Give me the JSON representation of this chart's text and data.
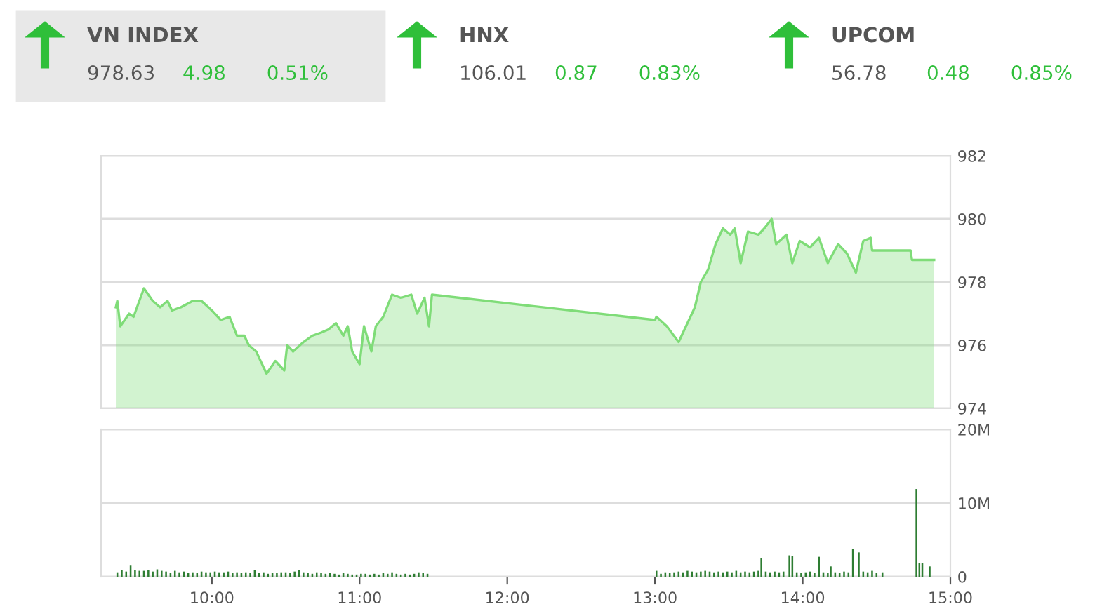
{
  "chart_data": [
    {
      "type": "other",
      "annotations": [
        "VN INDEX",
        "978.63",
        "4.98",
        "0.51%",
        "HNX",
        "106.01",
        "0.87",
        "0.83%",
        "UPCOM",
        "56.78",
        "0.48",
        "0.85%"
      ]
    },
    {
      "type": "area",
      "tick_labels": "y",
      "grid": "y",
      "xlim": [
        9.25,
        15
      ],
      "ylim": [
        974,
        982
      ],
      "yticks": [
        974,
        976,
        978,
        980,
        982
      ],
      "series": [
        {
          "color": "#7fdc78",
          "x": [
            9.35,
            9.36,
            9.38,
            9.44,
            9.47,
            9.54,
            9.6,
            9.65,
            9.7,
            9.73,
            9.79,
            9.87,
            9.93,
            10.0,
            10.06,
            10.12,
            10.17,
            10.22,
            10.25,
            10.3,
            10.37,
            10.43,
            10.49,
            10.51,
            10.55,
            10.62,
            10.68,
            10.74,
            10.79,
            10.84,
            10.89,
            10.92,
            10.95,
            11.0,
            11.03,
            11.08,
            11.11,
            11.16,
            11.22,
            11.28,
            11.35,
            11.39,
            11.44,
            11.47,
            11.49,
            13.0,
            13.01,
            13.08,
            13.16,
            13.22,
            13.27,
            13.31,
            13.36,
            13.41,
            13.46,
            13.51,
            13.54,
            13.58,
            13.63,
            13.7,
            13.74,
            13.79,
            13.82,
            13.89,
            13.93,
            13.98,
            14.05,
            14.11,
            14.17,
            14.24,
            14.3,
            14.36,
            14.41,
            14.46,
            14.47,
            14.73,
            14.74,
            14.89
          ],
          "values": [
            977.2,
            977.4,
            976.6,
            977.0,
            976.9,
            977.8,
            977.4,
            977.2,
            977.4,
            977.1,
            977.2,
            977.4,
            977.4,
            977.1,
            976.8,
            976.9,
            976.3,
            976.3,
            976.0,
            975.8,
            975.1,
            975.5,
            975.2,
            976.0,
            975.8,
            976.1,
            976.3,
            976.4,
            976.5,
            976.7,
            976.3,
            976.6,
            975.8,
            975.4,
            976.6,
            975.8,
            976.6,
            976.9,
            977.6,
            977.5,
            977.6,
            977.0,
            977.5,
            976.6,
            977.6,
            976.8,
            976.9,
            976.6,
            976.1,
            976.7,
            977.2,
            978.0,
            978.4,
            979.2,
            979.7,
            979.5,
            979.7,
            978.6,
            979.6,
            979.5,
            979.7,
            980.0,
            979.2,
            979.5,
            978.6,
            979.3,
            979.1,
            979.4,
            978.6,
            979.2,
            978.9,
            978.3,
            979.3,
            979.4,
            979.0,
            979.0,
            978.7,
            978.7
          ]
        }
      ]
    },
    {
      "type": "bar",
      "grid": "y",
      "xlim": [
        9.25,
        15
      ],
      "ylim": [
        0,
        20
      ],
      "yticks": [
        {
          "value": 0,
          "label": "0"
        },
        {
          "value": 10,
          "label": "10M"
        },
        {
          "value": 20,
          "label": "20M"
        }
      ],
      "xticks": [
        {
          "value": 10,
          "label": "10:00"
        },
        {
          "value": 11,
          "label": "11:00"
        },
        {
          "value": 12,
          "label": "12:00"
        },
        {
          "value": 13,
          "label": "13:00"
        },
        {
          "value": 14,
          "label": "14:00"
        },
        {
          "value": 15,
          "label": "15:00"
        }
      ],
      "series": [
        {
          "color": "#2e7d32",
          "x": [
            9.36,
            9.39,
            9.42,
            9.45,
            9.48,
            9.51,
            9.54,
            9.57,
            9.6,
            9.63,
            9.66,
            9.69,
            9.72,
            9.75,
            9.78,
            9.81,
            9.84,
            9.87,
            9.9,
            9.93,
            9.96,
            9.99,
            10.02,
            10.05,
            10.08,
            10.11,
            10.14,
            10.17,
            10.2,
            10.23,
            10.26,
            10.29,
            10.32,
            10.35,
            10.38,
            10.41,
            10.44,
            10.47,
            10.5,
            10.53,
            10.56,
            10.59,
            10.62,
            10.65,
            10.68,
            10.71,
            10.74,
            10.77,
            10.8,
            10.83,
            10.86,
            10.89,
            10.92,
            10.95,
            10.98,
            11.01,
            11.04,
            11.07,
            11.1,
            11.13,
            11.16,
            11.19,
            11.22,
            11.25,
            11.28,
            11.31,
            11.34,
            11.37,
            11.4,
            11.43,
            11.46,
            13.01,
            13.04,
            13.07,
            13.1,
            13.13,
            13.16,
            13.19,
            13.22,
            13.25,
            13.28,
            13.31,
            13.34,
            13.37,
            13.4,
            13.43,
            13.46,
            13.49,
            13.52,
            13.55,
            13.58,
            13.61,
            13.64,
            13.67,
            13.7,
            13.72,
            13.75,
            13.78,
            13.81,
            13.84,
            13.87,
            13.91,
            13.93,
            13.96,
            13.99,
            14.02,
            14.05,
            14.08,
            14.11,
            14.14,
            14.17,
            14.19,
            14.22,
            14.25,
            14.28,
            14.31,
            14.34,
            14.38,
            14.41,
            14.44,
            14.47,
            14.5,
            14.54,
            14.77,
            14.79,
            14.81,
            14.86
          ],
          "values": [
            0.6,
            0.9,
            0.7,
            1.5,
            0.9,
            0.8,
            0.8,
            0.9,
            0.7,
            1.0,
            0.8,
            0.7,
            0.5,
            0.8,
            0.6,
            0.7,
            0.5,
            0.6,
            0.5,
            0.7,
            0.6,
            0.6,
            0.7,
            0.6,
            0.6,
            0.7,
            0.5,
            0.6,
            0.5,
            0.6,
            0.5,
            0.9,
            0.5,
            0.6,
            0.4,
            0.5,
            0.5,
            0.6,
            0.6,
            0.5,
            0.7,
            0.9,
            0.6,
            0.5,
            0.4,
            0.6,
            0.5,
            0.4,
            0.5,
            0.4,
            0.3,
            0.5,
            0.4,
            0.3,
            0.3,
            0.4,
            0.4,
            0.3,
            0.4,
            0.3,
            0.5,
            0.4,
            0.6,
            0.4,
            0.3,
            0.4,
            0.3,
            0.4,
            0.6,
            0.5,
            0.4,
            0.8,
            0.4,
            0.6,
            0.5,
            0.6,
            0.7,
            0.6,
            0.8,
            0.7,
            0.6,
            0.7,
            0.8,
            0.7,
            0.6,
            0.7,
            0.6,
            0.7,
            0.6,
            0.8,
            0.6,
            0.7,
            0.6,
            0.7,
            0.8,
            2.5,
            0.7,
            0.6,
            0.7,
            0.6,
            0.7,
            2.9,
            2.8,
            0.6,
            0.5,
            0.6,
            0.7,
            0.5,
            2.7,
            0.6,
            0.5,
            1.4,
            0.6,
            0.5,
            0.7,
            0.6,
            3.8,
            3.3,
            0.7,
            0.6,
            0.8,
            0.5,
            0.6,
            11.9,
            1.9,
            1.9,
            1.4
          ]
        }
      ]
    }
  ]
}
